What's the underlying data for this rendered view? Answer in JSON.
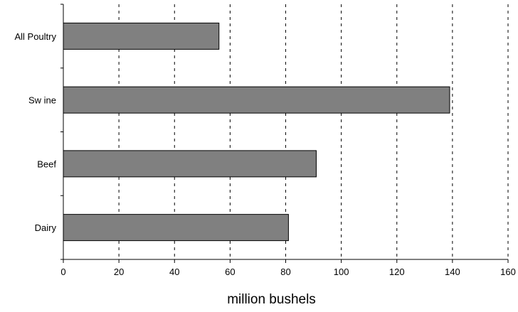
{
  "chart_data": {
    "type": "bar",
    "orientation": "horizontal",
    "categories": [
      "All Poultry",
      "Sw ine",
      "Beef",
      "Dairy"
    ],
    "values": [
      56,
      139,
      91,
      81
    ],
    "xlabel": "million bushels",
    "ylabel": "",
    "xlim": [
      0,
      160
    ],
    "xticks": [
      "0",
      "20",
      "40",
      "60",
      "80",
      "100",
      "120",
      "140",
      "160"
    ],
    "grid": "vertical dashed",
    "legend": "none",
    "bar_color": "#808080",
    "bar_edge_color": "#000000",
    "grid_color": "#000000"
  }
}
